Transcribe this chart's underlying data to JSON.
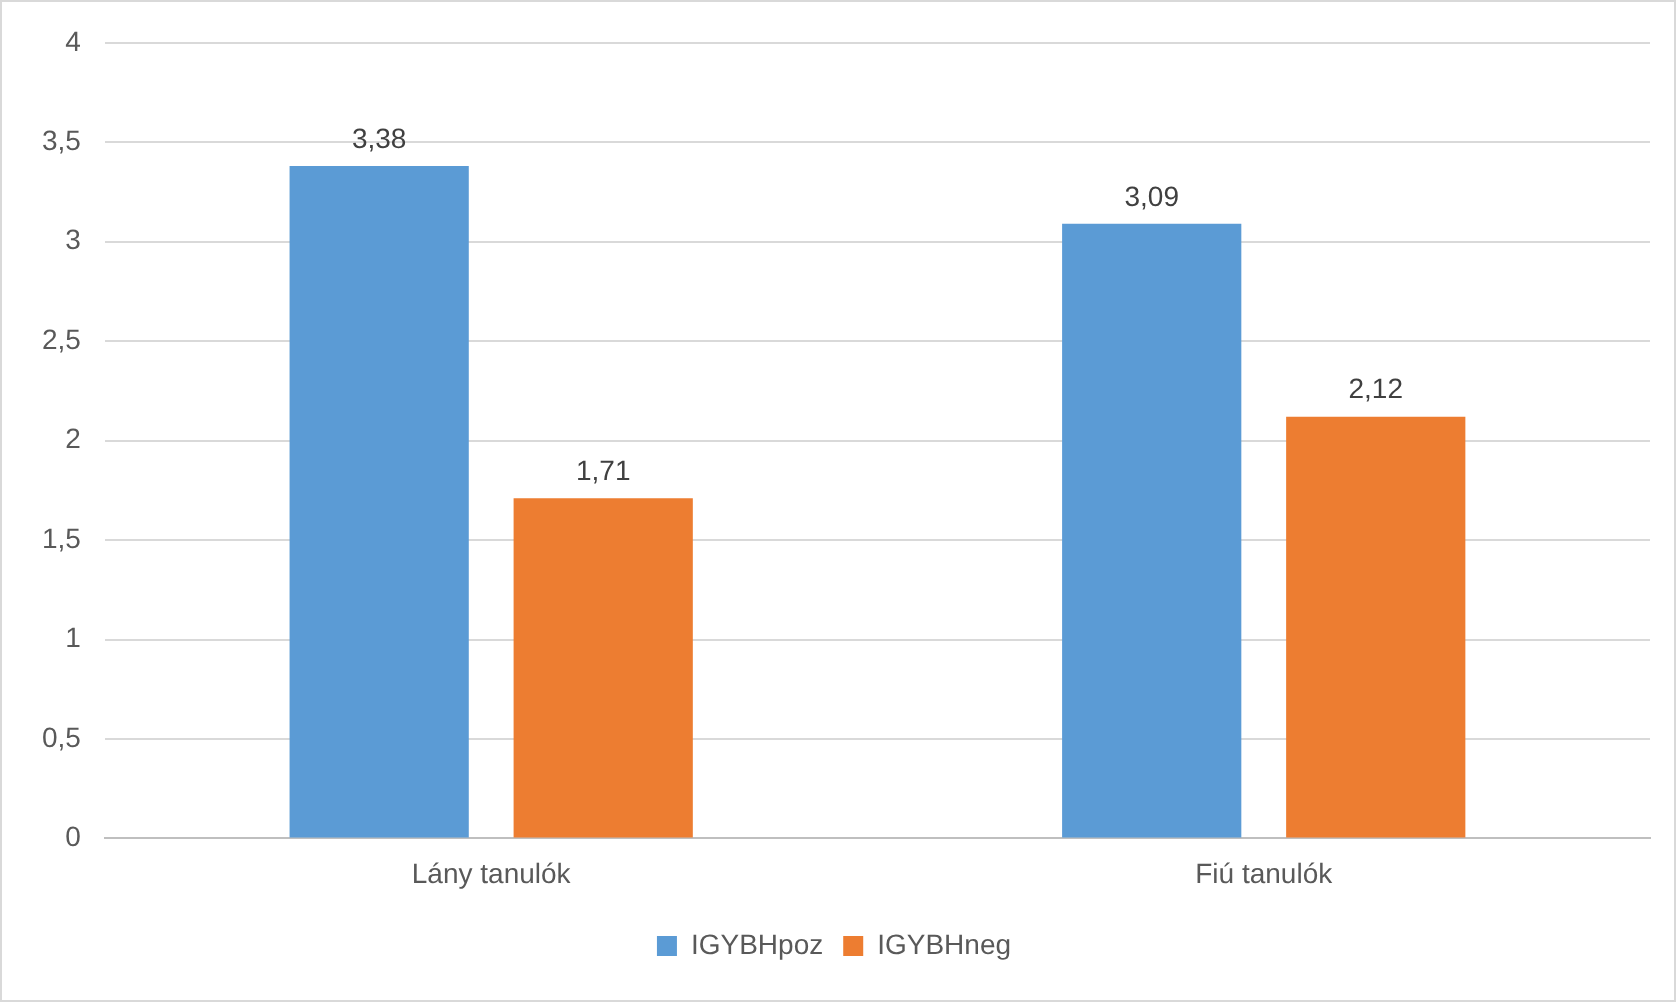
{
  "chart_data": {
    "type": "bar",
    "categories": [
      "Lány tanulók",
      "Fiú tanulók"
    ],
    "series": [
      {
        "name": "IGYBHpoz",
        "color": "#5b9bd5",
        "values": [
          3.38,
          3.09
        ],
        "value_labels": [
          "3,38",
          "3,09"
        ]
      },
      {
        "name": "IGYBHneg",
        "color": "#ed7d31",
        "values": [
          1.71,
          2.12
        ],
        "value_labels": [
          "1,71",
          "2,12"
        ]
      }
    ],
    "ylim": [
      0,
      4
    ],
    "yticks": [
      0,
      {
        "value": 0.5,
        "label": "0,5"
      },
      1,
      {
        "value": 1.5,
        "label": "1,5"
      },
      2,
      {
        "value": 2.5,
        "label": "2,5"
      },
      3,
      {
        "value": 3.5,
        "label": "3,5"
      },
      4
    ],
    "grid": "y",
    "legend": "bottom"
  }
}
